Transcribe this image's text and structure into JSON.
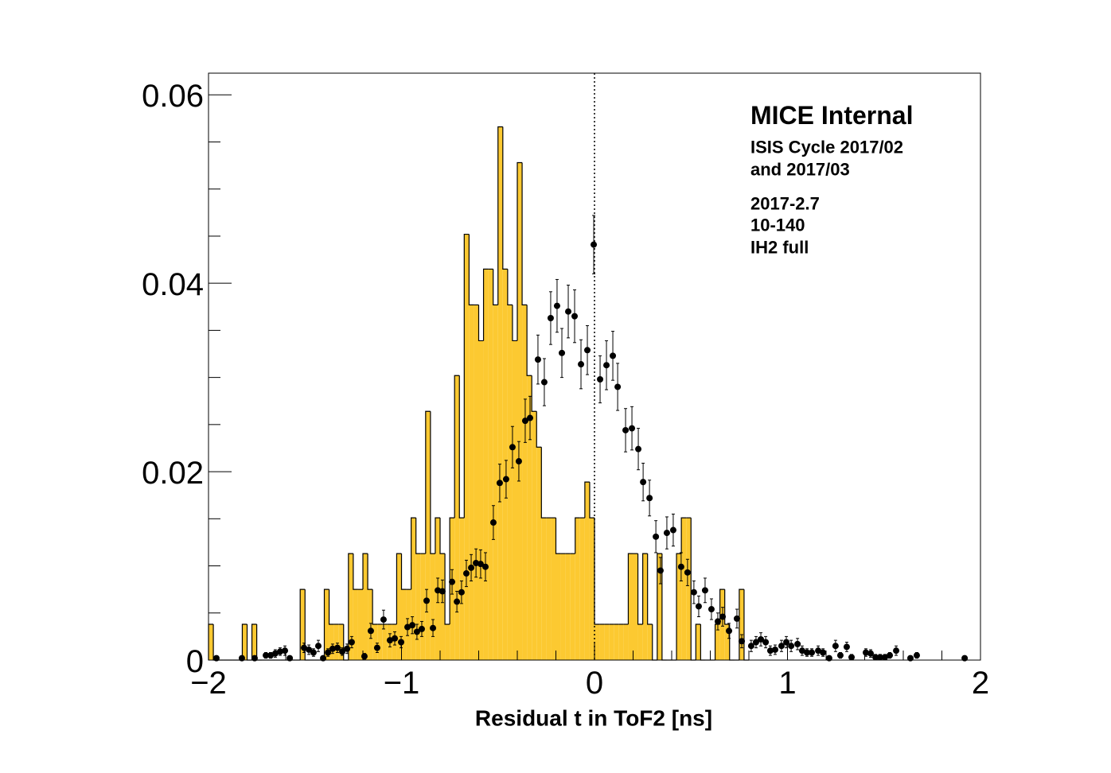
{
  "chart_data": {
    "type": "histogram",
    "xlabel": "Residual t in ToF2 [ns]",
    "annotations": [
      "MICE Internal",
      "ISIS Cycle 2017/02",
      "and 2017/03",
      "2017-2.7",
      "10-140",
      "IH2 full"
    ],
    "color": "#fcc931",
    "bins": [
      -2,
      -1.975,
      -1.95,
      -1.925,
      -1.9,
      -1.875,
      -1.85,
      -1.825,
      -1.8,
      -1.775,
      -1.75,
      -1.725,
      -1.7,
      -1.675,
      -1.65,
      -1.625,
      -1.6,
      -1.575,
      -1.55,
      -1.525,
      -1.5,
      -1.475,
      -1.45,
      -1.425,
      -1.4,
      -1.375,
      -1.35,
      -1.325,
      -1.3,
      -1.275,
      -1.25,
      -1.225,
      -1.2,
      -1.175,
      -1.15,
      -1.125,
      -1.1,
      -1.075,
      -1.05,
      -1.025,
      -1,
      -0.975,
      -0.95,
      -0.925,
      -0.9,
      -0.875,
      -0.85,
      -0.825,
      -0.8,
      -0.775,
      -0.75,
      -0.725,
      -0.7,
      -0.675,
      -0.65,
      -0.625,
      -0.6,
      -0.575,
      -0.55,
      -0.525,
      -0.5,
      -0.475,
      -0.45,
      -0.425,
      -0.4,
      -0.375,
      -0.35,
      -0.325,
      -0.3,
      -0.275,
      -0.25,
      -0.225,
      -0.2,
      -0.175,
      -0.15,
      -0.125,
      -0.1,
      -0.075,
      -0.05,
      -0.025,
      0,
      0.025,
      0.05,
      0.075,
      0.1,
      0.125,
      0.15,
      0.175,
      0.2,
      0.225,
      0.25,
      0.275,
      0.3,
      0.325,
      0.35,
      0.375,
      0.4,
      0.425,
      0.45,
      0.475,
      0.5,
      0.525,
      0.55,
      0.575,
      0.6,
      0.625,
      0.65,
      0.675,
      0.7,
      0.725,
      0.75,
      0.775,
      0.8
    ],
    "values": [
      0.0038,
      0,
      0,
      0,
      0,
      0,
      0,
      0.0038,
      0,
      0.0038,
      0,
      0,
      0,
      0,
      0,
      0,
      0,
      0,
      0,
      0.0075,
      0,
      0,
      0,
      0,
      0.0075,
      0.0038,
      0.0038,
      0.0038,
      0,
      0.0113,
      0.0075,
      0.0075,
      0.0113,
      0.0075,
      0.0038,
      0.0038,
      0.0038,
      0.0038,
      0.0038,
      0.0113,
      0.0075,
      0.0075,
      0.0151,
      0.0113,
      0.0113,
      0.0264,
      0.0113,
      0.0151,
      0.0113,
      0.0038,
      0.0151,
      0.0302,
      0.0151,
      0.0452,
      0.0377,
      0.0377,
      0.0339,
      0.0415,
      0.0415,
      0.0377,
      0.0566,
      0.0415,
      0.0377,
      0.0339,
      0.0528,
      0.0377,
      0.0302,
      0.0264,
      0.0226,
      0.0151,
      0.0151,
      0.0151,
      0.0113,
      0.0113,
      0.0113,
      0.0113,
      0.0151,
      0.0151,
      0.0189,
      0.0151,
      0.0038,
      0.0038,
      0.0038,
      0.0038,
      0.0038,
      0.0038,
      0.0038,
      0.0113,
      0.0113,
      0.0038,
      0.0113,
      0.0038,
      0,
      0.0113,
      0,
      0,
      0,
      0.0113,
      0.0151,
      0.0151,
      0,
      0.0038,
      0,
      0,
      0,
      0.0038,
      0.0075,
      0.0038,
      0,
      0,
      0.0075,
      0
    ],
    "points": {
      "color": "#000000",
      "x": [
        -1.959,
        -1.827,
        -1.761,
        -1.703,
        -1.678,
        -1.654,
        -1.629,
        -1.604,
        -1.579,
        -1.505,
        -1.48,
        -1.456,
        -1.431,
        -1.406,
        -1.381,
        -1.357,
        -1.332,
        -1.307,
        -1.282,
        -1.258,
        -1.192,
        -1.159,
        -1.126,
        -1.093,
        -1.06,
        -1.035,
        -1.002,
        -0.969,
        -0.944,
        -0.92,
        -0.895,
        -0.87,
        -0.837,
        -0.812,
        -0.788,
        -0.738,
        -0.713,
        -0.689,
        -0.664,
        -0.639,
        -0.614,
        -0.59,
        -0.565,
        -0.524,
        -0.491,
        -0.458,
        -0.425,
        -0.392,
        -0.359,
        -0.334,
        -0.293,
        -0.26,
        -0.227,
        -0.194,
        -0.169,
        -0.136,
        -0.103,
        -0.07,
        -0.037,
        -0.004,
        0.029,
        0.062,
        0.095,
        0.12,
        0.161,
        0.194,
        0.227,
        0.252,
        0.285,
        0.318,
        0.342,
        0.375,
        0.408,
        0.449,
        0.482,
        0.515,
        0.54,
        0.573,
        0.606,
        0.639,
        0.664,
        0.697,
        0.738,
        0.763,
        0.812,
        0.837,
        0.862,
        0.887,
        0.911,
        0.936,
        0.969,
        0.994,
        1.019,
        1.052,
        1.076,
        1.101,
        1.126,
        1.159,
        1.184,
        1.216,
        1.249,
        1.274,
        1.307,
        1.332,
        1.406,
        1.431,
        1.456,
        1.48,
        1.505,
        1.53,
        1.563,
        1.637,
        1.67,
        1.918
      ],
      "values": [
        0.0002,
        0.0002,
        0.0002,
        0.0005,
        0.0005,
        0.0007,
        0.0009,
        0.001,
        0.0002,
        0.0013,
        0.0011,
        0.0008,
        0.0015,
        0.0002,
        0.0008,
        0.0012,
        0.0013,
        0.0009,
        0.0012,
        0.0019,
        0.0004,
        0.0031,
        0.0013,
        0.0043,
        0.0021,
        0.0023,
        0.0019,
        0.0035,
        0.0037,
        0.003,
        0.0033,
        0.0063,
        0.0034,
        0.0074,
        0.0073,
        0.0083,
        0.0062,
        0.0072,
        0.0092,
        0.0098,
        0.0103,
        0.0102,
        0.0099,
        0.0146,
        0.0188,
        0.0192,
        0.0226,
        0.0211,
        0.0254,
        0.0257,
        0.0319,
        0.0295,
        0.0363,
        0.0376,
        0.0326,
        0.037,
        0.0365,
        0.0314,
        0.0329,
        0.0441,
        0.0298,
        0.0313,
        0.0323,
        0.029,
        0.0244,
        0.0246,
        0.0224,
        0.0189,
        0.0172,
        0.0131,
        0.0095,
        0.0135,
        0.0138,
        0.0099,
        0.0093,
        0.0072,
        0.0057,
        0.0074,
        0.0054,
        0.0041,
        0.0046,
        0.0031,
        0.0044,
        0.002,
        0.0015,
        0.0019,
        0.0022,
        0.0019,
        0.001,
        0.0011,
        0.0015,
        0.0019,
        0.0015,
        0.0017,
        0.001,
        0.0008,
        0.0008,
        0.001,
        0.0008,
        0.0002,
        0.0015,
        0.0005,
        0.0014,
        0.0003,
        0.0008,
        0.0007,
        0.0003,
        0.0003,
        0.0003,
        0.0005,
        0.001,
        0.0002,
        0.0005,
        0.0002
      ],
      "errors": [
        0.0002,
        0.0002,
        0.0002,
        0.0003,
        0.0003,
        0.0004,
        0.0004,
        0.0005,
        0.0002,
        0.0005,
        0.0005,
        0.0004,
        0.0006,
        0.0002,
        0.0004,
        0.0005,
        0.0005,
        0.0004,
        0.0005,
        0.0006,
        0.0003,
        0.0008,
        0.0005,
        0.001,
        0.0007,
        0.0007,
        0.0006,
        0.0009,
        0.0009,
        0.0008,
        0.0008,
        0.0012,
        0.0009,
        0.0013,
        0.0012,
        0.0013,
        0.0011,
        0.0012,
        0.0014,
        0.0014,
        0.0015,
        0.0015,
        0.0015,
        0.0018,
        0.002,
        0.002,
        0.0022,
        0.0021,
        0.0023,
        0.0023,
        0.0026,
        0.0025,
        0.0028,
        0.0028,
        0.0026,
        0.0028,
        0.0028,
        0.0026,
        0.0026,
        0.0031,
        0.0025,
        0.0026,
        0.0026,
        0.0025,
        0.0023,
        0.0023,
        0.0022,
        0.002,
        0.0019,
        0.0017,
        0.0014,
        0.0017,
        0.0017,
        0.0015,
        0.0014,
        0.0012,
        0.0011,
        0.0013,
        0.0011,
        0.0009,
        0.001,
        0.0008,
        0.001,
        0.0007,
        0.0006,
        0.0006,
        0.0007,
        0.0006,
        0.0005,
        0.0005,
        0.0006,
        0.0006,
        0.0006,
        0.0006,
        0.0005,
        0.0004,
        0.0004,
        0.0005,
        0.0004,
        0.0002,
        0.0006,
        0.0003,
        0.0005,
        0.0003,
        0.0004,
        0.0004,
        0.0003,
        0.0003,
        0.0003,
        0.0003,
        0.0005,
        0.0002,
        0.0003,
        0.0002
      ]
    },
    "vline": 0,
    "xlim": [
      -2,
      2
    ],
    "ylim": [
      0,
      0.0623
    ],
    "xticks": [
      {
        "value": -2,
        "label": "−2"
      },
      {
        "value": -1,
        "label": "−1"
      },
      0,
      1,
      2
    ],
    "yticks": [
      0,
      0.02,
      0.04,
      0.06
    ],
    "xminorticks": [
      -1.8,
      -1.6,
      -1.4,
      -1.2,
      -0.8,
      -0.6,
      -0.4,
      -0.2,
      0.2,
      0.4,
      0.6,
      0.8,
      1.2,
      1.4,
      1.6,
      1.8
    ],
    "yminorticks": [
      0.005,
      0.01,
      0.015,
      0.025,
      0.03,
      0.035,
      0.045,
      0.05,
      0.055
    ]
  }
}
